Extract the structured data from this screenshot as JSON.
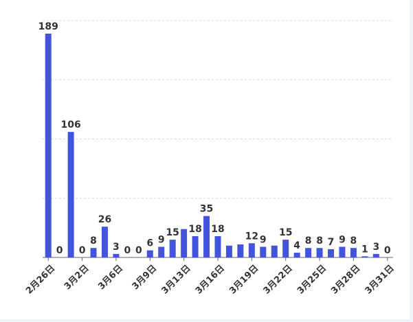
{
  "chart_data": {
    "type": "bar",
    "color": "#4254dc",
    "grid": true,
    "categories": [
      "2月26日",
      null,
      null,
      "3月2日",
      null,
      null,
      "3月6日",
      null,
      null,
      "3月9日",
      null,
      null,
      "3月13日",
      null,
      null,
      "3月16日",
      null,
      null,
      "3月19日",
      null,
      null,
      "3月22日",
      null,
      null,
      "3月25日",
      null,
      null,
      "3月28日",
      null,
      null,
      "3月31日"
    ],
    "values": [
      189,
      0,
      106,
      0,
      8,
      26,
      3,
      0,
      0,
      6,
      9,
      15,
      24,
      18,
      35,
      18,
      10,
      11,
      12,
      9,
      10,
      15,
      4,
      8,
      8,
      7,
      9,
      8,
      1,
      3,
      0
    ],
    "value_labels": [
      "189",
      "0",
      "106",
      "0",
      "8",
      "26",
      "3",
      "0",
      "0",
      "6",
      "9",
      "15",
      null,
      "18",
      "35",
      "18",
      null,
      null,
      "12",
      "9",
      null,
      "15",
      "4",
      "8",
      "8",
      "7",
      "9",
      "8",
      "1",
      "3",
      "0"
    ],
    "ylim": [
      0,
      200
    ],
    "yticks": [
      0,
      50,
      100,
      150,
      200
    ]
  }
}
